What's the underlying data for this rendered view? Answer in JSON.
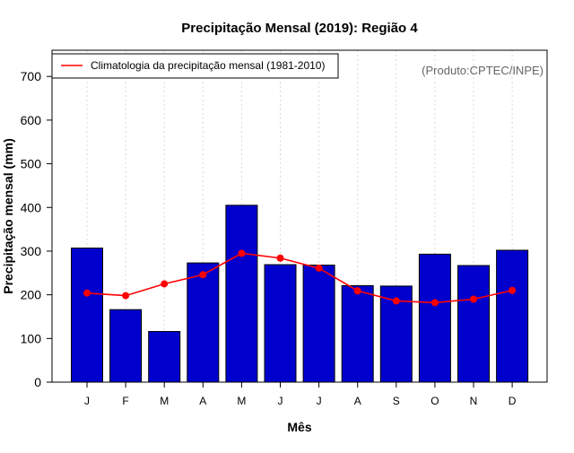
{
  "chart_data": {
    "type": "bar",
    "title": "Precipitação Mensal (2019): Região 4",
    "xlabel": "Mês",
    "ylabel": "Precipitação mensal (mm)",
    "ylim": [
      0,
      760
    ],
    "yticks": [
      0,
      100,
      200,
      300,
      400,
      500,
      600,
      700
    ],
    "categories": [
      "J",
      "F",
      "M",
      "A",
      "M",
      "J",
      "J",
      "A",
      "S",
      "O",
      "N",
      "D"
    ],
    "series": [
      {
        "name": "Precipitação mensal (2019)",
        "type": "bar",
        "color": "#0000CD",
        "values": [
          307,
          166,
          116,
          273,
          405,
          269,
          268,
          221,
          220,
          293,
          267,
          302
        ]
      },
      {
        "name": "Climatologia da precipitação mensal (1981-2010)",
        "type": "line",
        "color": "#FF0000",
        "values": [
          204,
          198,
          225,
          246,
          295,
          284,
          261,
          209,
          186,
          182,
          190,
          210
        ]
      }
    ],
    "legend": {
      "position": "top-left",
      "label": "Climatologia da precipitação mensal (1981-2010)"
    },
    "source_note": "(Produto:CPTEC/INPE)",
    "grid": "vertical-dotted"
  }
}
